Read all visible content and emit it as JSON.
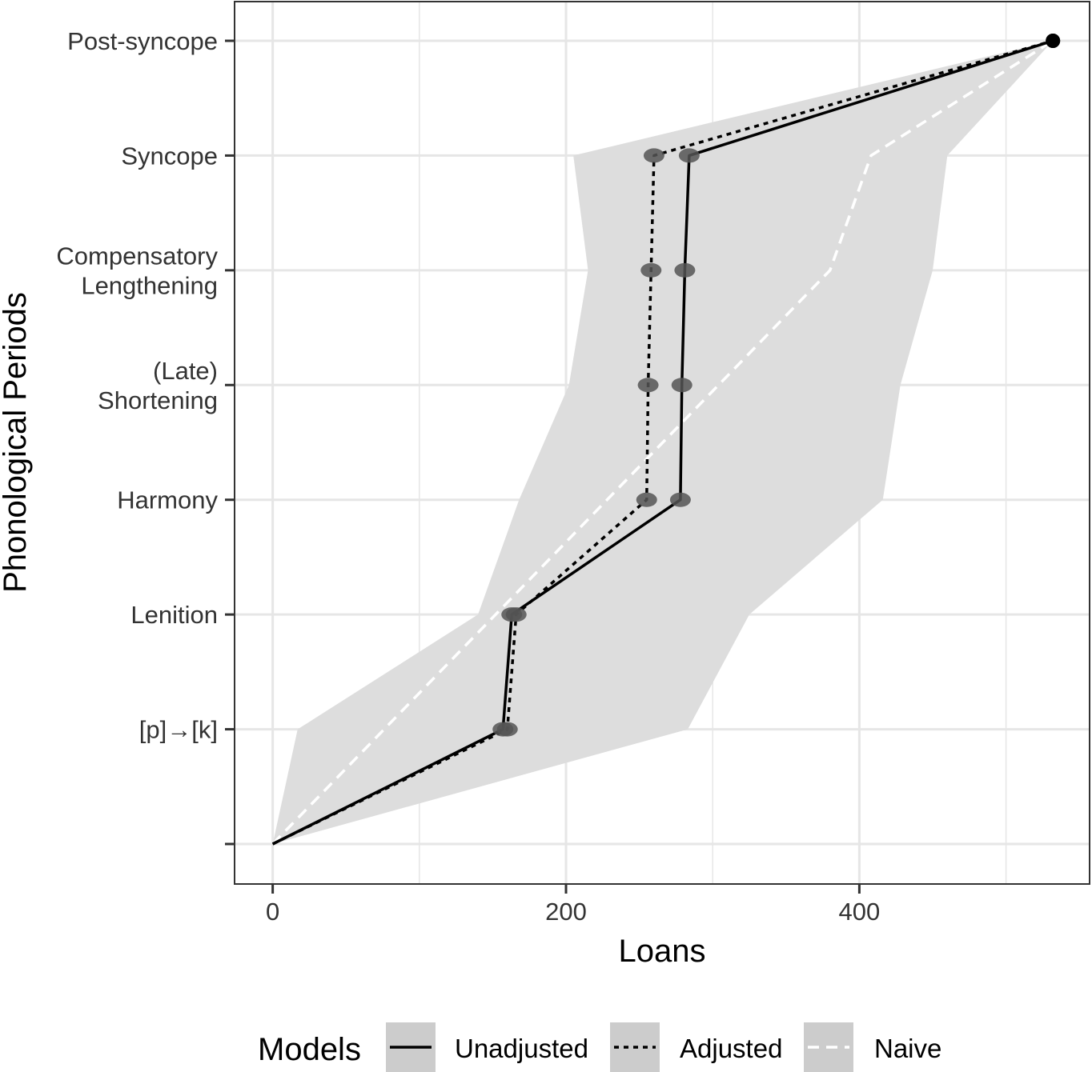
{
  "chart_data": {
    "type": "line",
    "xlabel": "Loans",
    "ylabel": "Phonological Periods",
    "xlim": [
      -26,
      557
    ],
    "x_ticks": [
      0,
      200,
      400
    ],
    "x_tick_labels": [
      "0",
      "200",
      "400"
    ],
    "y_levels": 8,
    "y_tick_labels": [
      [
        ""
      ],
      [
        "[p]→[k]"
      ],
      [
        "Lenition"
      ],
      [
        "Harmony"
      ],
      [
        "(Late)",
        "Shortening"
      ],
      [
        "Compensatory",
        "Lengthening"
      ],
      [
        "Syncope"
      ],
      [
        "Post-syncope"
      ]
    ],
    "grid": true,
    "ribbon": {
      "lower": [
        0,
        17,
        140,
        168,
        202,
        215,
        205,
        532
      ],
      "upper": [
        0,
        283,
        325,
        416,
        428,
        450,
        460,
        532
      ]
    },
    "series": [
      {
        "name": "Unadjusted",
        "style": "solid",
        "color": "#000000",
        "values": [
          0,
          157,
          163,
          278,
          279,
          281,
          284,
          532
        ],
        "points": [
          [
            157,
            1
          ],
          [
            163,
            2
          ],
          [
            278,
            3
          ],
          [
            279,
            4
          ],
          [
            281,
            5
          ],
          [
            284,
            6
          ],
          [
            532,
            7
          ]
        ]
      },
      {
        "name": "Adjusted",
        "style": "dotted",
        "color": "#000000",
        "values": [
          0,
          160,
          166,
          255,
          256,
          258,
          260,
          532
        ],
        "points": [
          [
            160,
            1
          ],
          [
            166,
            2
          ],
          [
            255,
            3
          ],
          [
            256,
            4
          ],
          [
            258,
            5
          ],
          [
            260,
            6
          ],
          [
            532,
            7
          ]
        ]
      },
      {
        "name": "Naive",
        "style": "dashed",
        "color": "#ffffff",
        "values": [
          0,
          76,
          152,
          228,
          304,
          380,
          408,
          532
        ]
      }
    ],
    "legend": {
      "position": "bottom",
      "title": "Models",
      "entries": [
        "Unadjusted",
        "Adjusted",
        "Naive"
      ]
    },
    "colors": {
      "ribbon": "#dddddd",
      "grid": "#e6e6e6",
      "legend_key": "#cccccc",
      "point": "#555555"
    }
  }
}
